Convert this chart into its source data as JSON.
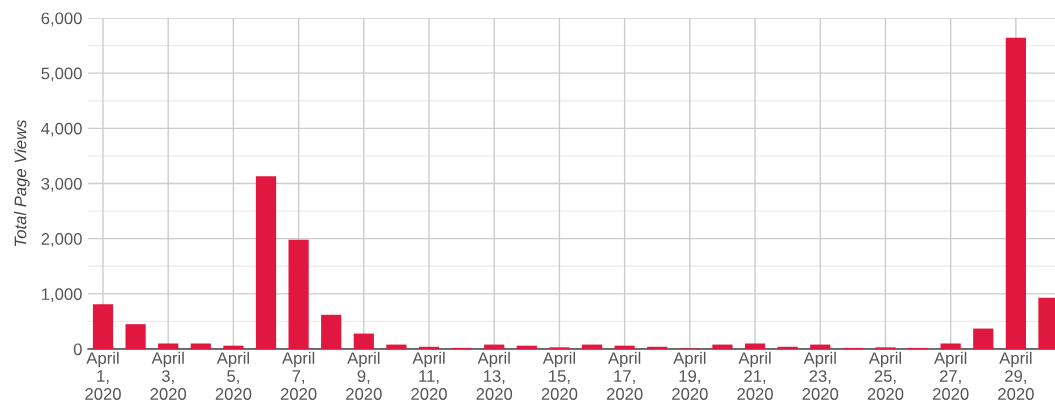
{
  "chart_data": {
    "type": "bar",
    "ylabel": "Total Page Views",
    "categories": [
      "April\n1,\n2020",
      null,
      "April\n3,\n2020",
      null,
      "April\n5,\n2020",
      null,
      "April\n7,\n2020",
      null,
      "April\n9,\n2020",
      null,
      "April\n11,\n2020",
      null,
      "April\n13,\n2020",
      null,
      "April\n15,\n2020",
      null,
      "April\n17,\n2020",
      null,
      "April\n19,\n2020",
      null,
      "April\n21,\n2020",
      null,
      "April\n23,\n2020",
      null,
      "April\n25,\n2020",
      null,
      "April\n27,\n2020",
      null,
      "April\n29,\n2020",
      null
    ],
    "values": [
      810,
      450,
      100,
      100,
      60,
      3130,
      1980,
      620,
      280,
      80,
      40,
      20,
      80,
      60,
      30,
      80,
      60,
      40,
      10,
      80,
      100,
      40,
      80,
      20,
      30,
      20,
      100,
      370,
      5640,
      930
    ],
    "color": "#e0173e",
    "ylim": [
      0,
      6000
    ],
    "yticks": [
      {
        "value": 0,
        "label": "0"
      },
      {
        "value": 1000,
        "label": "1,000"
      },
      {
        "value": 2000,
        "label": "2,000"
      },
      {
        "value": 3000,
        "label": "3,000"
      },
      {
        "value": 4000,
        "label": "4,000"
      },
      {
        "value": 5000,
        "label": "5,000"
      },
      {
        "value": 6000,
        "label": "6,000"
      }
    ],
    "grid": true
  }
}
